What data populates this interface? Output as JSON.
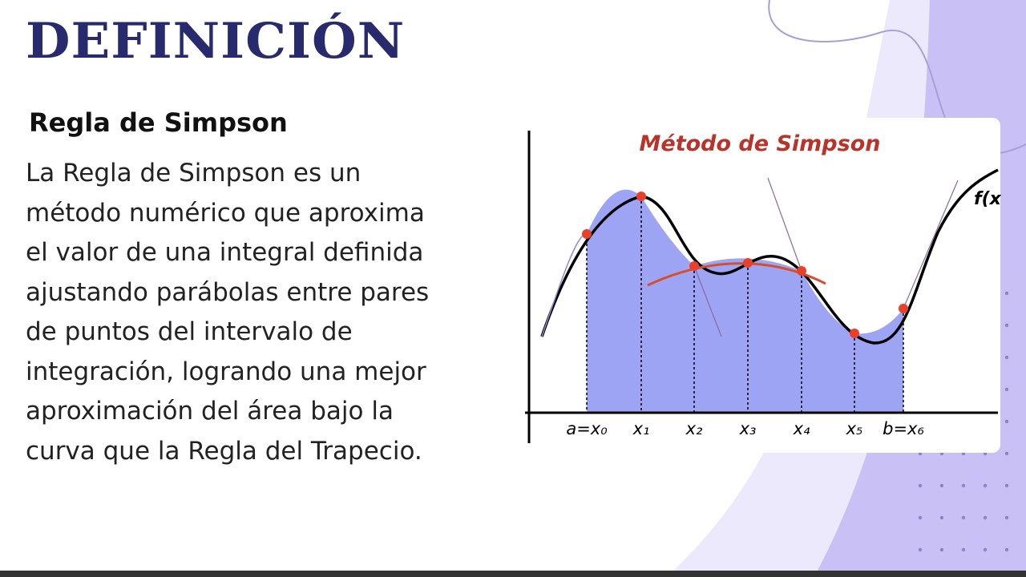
{
  "header": {
    "title": "DEFINICIÓN"
  },
  "section": {
    "heading": "Regla de Simpson",
    "body": [
      "La Regla de Simpson es un",
      "método numérico que aproxima",
      "el valor de una integral definida",
      "ajustando parábolas entre pares",
      "de puntos del intervalo de",
      "integración, logrando una mejor",
      "aproximación del área bajo la",
      "curva que la Regla del Trapecio."
    ]
  },
  "figure": {
    "title": "Método de Simpson",
    "curve_label": "f(x",
    "x_labels": [
      "a=x₀",
      "x₁",
      "x₂",
      "x₃",
      "x₄",
      "x₅",
      "b=x₆"
    ]
  }
}
